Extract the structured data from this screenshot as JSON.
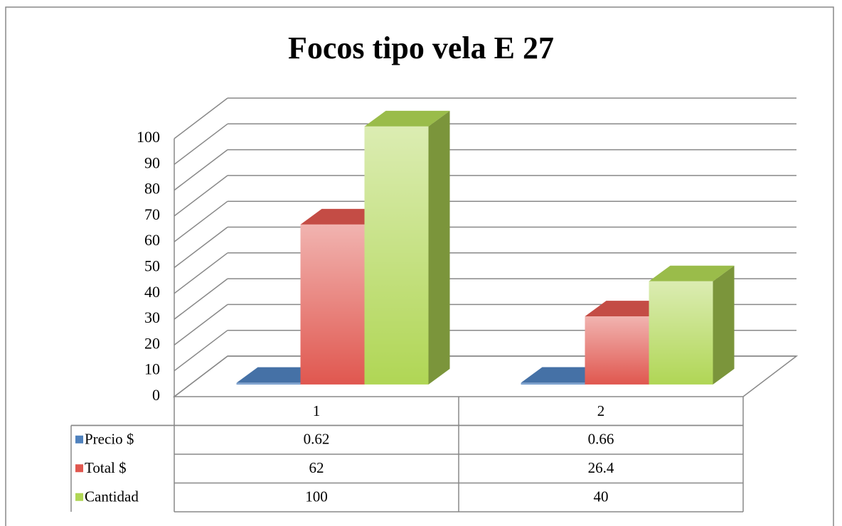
{
  "chart_data": {
    "type": "bar3d",
    "title": "Focos tipo vela E 27",
    "categories": [
      "1",
      "2"
    ],
    "series": [
      {
        "name": "Precio $",
        "color": "#4f81bd",
        "values": [
          0.62,
          0.66
        ]
      },
      {
        "name": "Total $",
        "color": "#e0574f",
        "values": [
          62,
          26.4
        ]
      },
      {
        "name": "Cantidad",
        "color": "#b0d655",
        "values": [
          100,
          40
        ]
      }
    ],
    "ylim": [
      0,
      100
    ],
    "yticks": [
      0,
      10,
      20,
      30,
      40,
      50,
      60,
      70,
      80,
      90,
      100
    ],
    "grid": true,
    "data_table": true
  }
}
